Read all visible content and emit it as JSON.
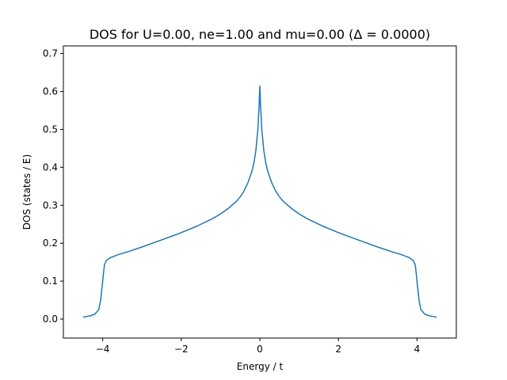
{
  "chart_data": {
    "type": "line",
    "title": "DOS for U=0.00, ne=1.00 and mu=0.00 (Δ = 0.0000)",
    "xlabel": "Energy / t",
    "ylabel": "DOS (states / E)",
    "xlim": [
      -5.0,
      5.0
    ],
    "ylim": [
      -0.05,
      0.72
    ],
    "xticks": [
      -4,
      -2,
      0,
      2,
      4
    ],
    "xtick_labels": [
      "−4",
      "−2",
      "0",
      "2",
      "4"
    ],
    "yticks": [
      0.0,
      0.1,
      0.2,
      0.3,
      0.4,
      0.5,
      0.6,
      0.7
    ],
    "ytick_labels": [
      "0.0",
      "0.1",
      "0.2",
      "0.3",
      "0.4",
      "0.5",
      "0.6",
      "0.7"
    ],
    "grid": false,
    "series": [
      {
        "color": "#1f77b4",
        "x": [
          -4.5,
          -4.4,
          -4.3,
          -4.2,
          -4.1,
          -4.05,
          -4.0,
          -3.97,
          -3.95,
          -3.9,
          -3.8,
          -3.6,
          -3.4,
          -3.0,
          -2.6,
          -2.2,
          -2.0,
          -1.6,
          -1.2,
          -1.0,
          -0.8,
          -0.6,
          -0.5,
          -0.4,
          -0.3,
          -0.2,
          -0.15,
          -0.1,
          -0.05,
          -0.02,
          0.0,
          0.02,
          0.05,
          0.1,
          0.15,
          0.2,
          0.3,
          0.4,
          0.5,
          0.6,
          0.8,
          1.0,
          1.2,
          1.6,
          2.0,
          2.2,
          2.6,
          3.0,
          3.4,
          3.6,
          3.8,
          3.9,
          3.95,
          3.97,
          4.0,
          4.05,
          4.1,
          4.2,
          4.3,
          4.4,
          4.5
        ],
        "y": [
          0.005,
          0.007,
          0.009,
          0.013,
          0.025,
          0.05,
          0.1,
          0.13,
          0.145,
          0.155,
          0.162,
          0.17,
          0.176,
          0.19,
          0.205,
          0.22,
          0.228,
          0.245,
          0.265,
          0.277,
          0.292,
          0.31,
          0.322,
          0.338,
          0.36,
          0.39,
          0.412,
          0.445,
          0.5,
          0.56,
          0.615,
          0.56,
          0.5,
          0.445,
          0.412,
          0.39,
          0.36,
          0.338,
          0.322,
          0.31,
          0.292,
          0.277,
          0.265,
          0.245,
          0.228,
          0.22,
          0.205,
          0.19,
          0.176,
          0.17,
          0.162,
          0.155,
          0.145,
          0.13,
          0.1,
          0.05,
          0.025,
          0.013,
          0.009,
          0.007,
          0.005
        ]
      }
    ]
  }
}
